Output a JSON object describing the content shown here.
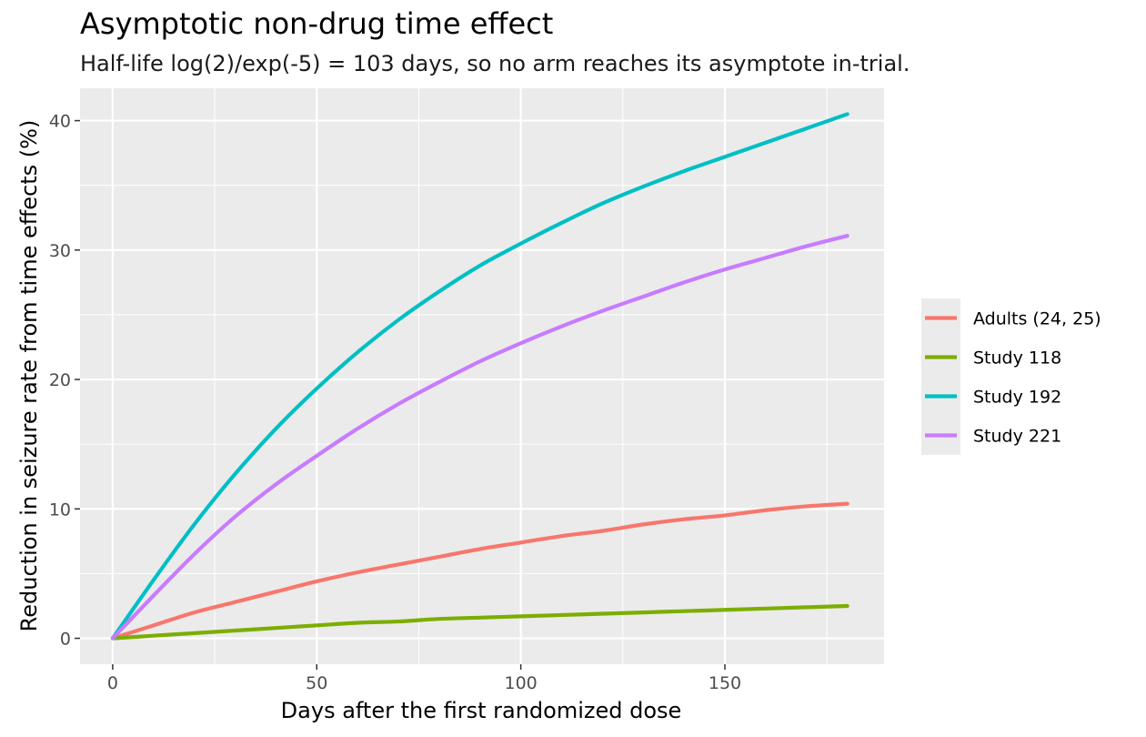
{
  "chart_data": {
    "type": "line",
    "title": "Asymptotic non-drug time effect",
    "subtitle": "Half-life log(2)/exp(-5) = 103 days, so no arm reaches its asymptote in-trial.",
    "xlabel": "Days after the first randomized dose",
    "ylabel": "Reduction in seizure rate from time effects (%)",
    "xlim": [
      -8,
      189
    ],
    "ylim": [
      -2,
      42.5
    ],
    "x_ticks": [
      0,
      50,
      100,
      150
    ],
    "x_minor_ticks": [
      25,
      75,
      125,
      175
    ],
    "y_ticks": [
      0,
      10,
      20,
      30,
      40
    ],
    "y_minor_ticks": [
      5,
      15,
      25,
      35
    ],
    "grid": true,
    "legend_position": "right",
    "x": [
      0,
      10,
      20,
      30,
      40,
      50,
      60,
      70,
      80,
      90,
      100,
      110,
      120,
      130,
      140,
      150,
      160,
      170,
      180
    ],
    "series": [
      {
        "name": "Adults (24, 25)",
        "color": "#F8766D",
        "values": [
          0,
          1.0,
          2.0,
          2.8,
          3.6,
          4.4,
          5.1,
          5.7,
          6.3,
          6.9,
          7.4,
          7.9,
          8.3,
          8.8,
          9.2,
          9.5,
          9.9,
          10.2,
          10.4
        ]
      },
      {
        "name": "Study 118",
        "color": "#7CAE00",
        "values": [
          0,
          0.2,
          0.4,
          0.6,
          0.8,
          1.0,
          1.2,
          1.3,
          1.5,
          1.6,
          1.7,
          1.8,
          1.9,
          2.0,
          2.1,
          2.2,
          2.3,
          2.4,
          2.5
        ]
      },
      {
        "name": "Study 192",
        "color": "#00BFC4",
        "values": [
          0,
          4.5,
          8.8,
          12.7,
          16.2,
          19.3,
          22.1,
          24.6,
          26.8,
          28.8,
          30.5,
          32.1,
          33.6,
          34.9,
          36.1,
          37.2,
          38.3,
          39.4,
          40.5
        ]
      },
      {
        "name": "Study 221",
        "color": "#C77CFF",
        "values": [
          0,
          3.3,
          6.5,
          9.4,
          11.9,
          14.1,
          16.2,
          18.1,
          19.8,
          21.4,
          22.8,
          24.1,
          25.3,
          26.4,
          27.5,
          28.5,
          29.4,
          30.3,
          31.1
        ]
      }
    ]
  }
}
